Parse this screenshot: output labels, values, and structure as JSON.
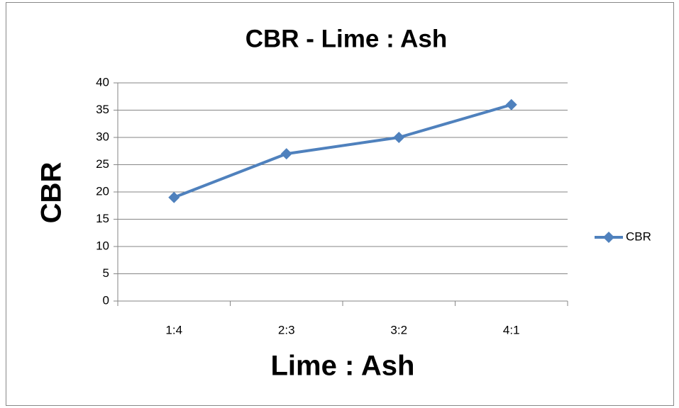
{
  "chart_data": {
    "type": "line",
    "title": "CBR - Lime : Ash",
    "x_label": "Lime : Ash",
    "y_label": "CBR",
    "categories": [
      "1:4",
      "2:3",
      "3:2",
      "4:1"
    ],
    "series": [
      {
        "name": "CBR",
        "color": "#4f81bd",
        "values": [
          19,
          27,
          30,
          36
        ]
      }
    ],
    "ylim": [
      0,
      40
    ],
    "yticks": [
      0,
      5,
      10,
      15,
      20,
      25,
      30,
      35,
      40
    ],
    "grid": true,
    "legend": "right"
  }
}
